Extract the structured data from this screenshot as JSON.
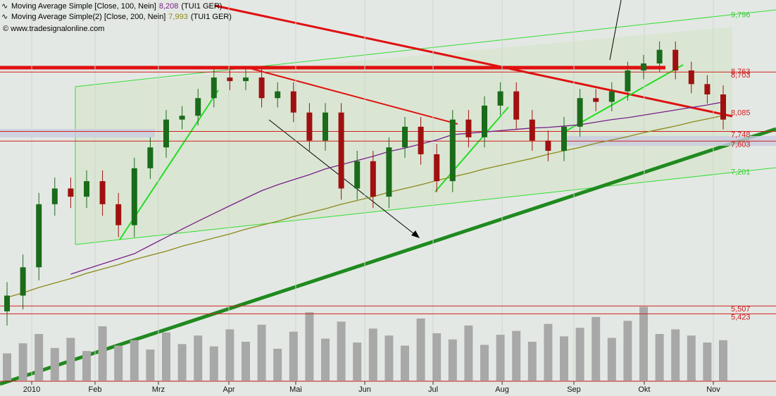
{
  "chart_data": {
    "type": "candlestick",
    "log_scale": true,
    "ylim": [
      4.76,
      10.02
    ],
    "categories": [
      null,
      null,
      null,
      null,
      null,
      null,
      null,
      null,
      null,
      null,
      null,
      null,
      null,
      null,
      null,
      null,
      null,
      null,
      null,
      null,
      null,
      null,
      null,
      null,
      null,
      null,
      null,
      null,
      null,
      null,
      null,
      null,
      null,
      null,
      null,
      null,
      null,
      null,
      null,
      null,
      null,
      null,
      null,
      null,
      null,
      null
    ],
    "xticks": [
      {
        "value": 1.55,
        "label": "2010"
      },
      {
        "value": 5.53,
        "label": "Feb"
      },
      {
        "value": 9.51,
        "label": "Mrz"
      },
      {
        "value": 13.94,
        "label": "Apr"
      },
      {
        "value": 18.14,
        "label": "Mai"
      },
      {
        "value": 22.48,
        "label": "Jun"
      },
      {
        "value": 26.77,
        "label": "Jul"
      },
      {
        "value": 31.11,
        "label": "Aug"
      },
      {
        "value": 35.62,
        "label": "Sep"
      },
      {
        "value": 40.04,
        "label": "Okt"
      },
      {
        "value": 44.38,
        "label": "Nov"
      }
    ],
    "up_color": "#1a6b1a",
    "down_color": "#a01010",
    "open": [
      5.45,
      5.62,
      5.94,
      6.72,
      6.93,
      6.82,
      7.03,
      6.72,
      6.45,
      7.21,
      7.51,
      7.93,
      7.99,
      8.27,
      8.61,
      8.55,
      8.61,
      8.27,
      8.38,
      8.04,
      7.61,
      8.04,
      6.93,
      7.31,
      6.82,
      7.51,
      7.82,
      7.41,
      7.03,
      7.93,
      7.66,
      8.15,
      8.38,
      7.93,
      7.61,
      7.46,
      7.82,
      8.27,
      8.21,
      8.38,
      8.73,
      8.85,
      9.09,
      8.73,
      8.5,
      8.33
    ],
    "high": [
      5.77,
      6.09,
      6.87,
      7.08,
      7.08,
      7.18,
      7.18,
      6.87,
      7.36,
      7.66,
      8.08,
      8.14,
      8.42,
      8.76,
      8.76,
      8.76,
      8.76,
      8.53,
      8.53,
      8.19,
      8.19,
      8.19,
      7.46,
      7.46,
      7.66,
      7.97,
      7.97,
      7.56,
      8.08,
      8.08,
      8.3,
      8.53,
      8.53,
      8.08,
      7.76,
      7.97,
      8.42,
      8.42,
      8.53,
      8.88,
      9.0,
      9.24,
      9.24,
      8.88,
      8.65,
      8.48
    ],
    "low": [
      5.3,
      5.47,
      5.79,
      6.57,
      6.67,
      6.67,
      6.57,
      6.3,
      6.3,
      7.06,
      7.36,
      7.78,
      7.84,
      8.12,
      8.4,
      8.4,
      8.12,
      8.12,
      7.89,
      7.46,
      7.46,
      6.78,
      6.78,
      6.67,
      6.67,
      7.36,
      7.26,
      6.88,
      6.88,
      7.51,
      7.51,
      8.0,
      7.78,
      7.46,
      7.31,
      7.31,
      7.67,
      8.06,
      8.06,
      8.23,
      8.58,
      8.7,
      8.58,
      8.35,
      8.18,
      7.78
    ],
    "close": [
      5.62,
      5.94,
      6.72,
      6.93,
      6.82,
      7.03,
      6.72,
      6.45,
      7.21,
      7.51,
      7.93,
      7.99,
      8.27,
      8.61,
      8.55,
      8.61,
      8.27,
      8.38,
      8.04,
      7.61,
      8.04,
      6.93,
      7.31,
      6.82,
      7.51,
      7.82,
      7.41,
      7.03,
      7.93,
      7.66,
      8.15,
      8.38,
      7.93,
      7.61,
      7.46,
      7.82,
      8.27,
      8.21,
      8.38,
      8.73,
      8.85,
      9.09,
      8.73,
      8.5,
      8.33,
      7.93
    ],
    "volume": [
      35,
      48,
      60,
      42,
      55,
      38,
      70,
      45,
      52,
      40,
      62,
      47,
      58,
      44,
      66,
      50,
      72,
      41,
      63,
      88,
      54,
      76,
      49,
      67,
      58,
      45,
      80,
      61,
      53,
      71,
      46,
      59,
      64,
      50,
      73,
      57,
      68,
      82,
      55,
      77,
      95,
      60,
      66,
      58,
      49,
      52
    ],
    "vlim": [
      0,
      100
    ],
    "volume_color": "#a8a8a8",
    "series": [
      {
        "name": "Moving Average Simple [Close, 100, Nein]",
        "color": "#7a1f8a",
        "last_label": "8,208",
        "source": "(TUI1 GER)",
        "values": [
          null,
          null,
          null,
          null,
          5.86,
          5.92,
          5.98,
          6.04,
          6.1,
          6.2,
          6.3,
          6.4,
          6.5,
          6.6,
          6.7,
          6.8,
          6.9,
          6.98,
          7.05,
          7.12,
          7.2,
          7.26,
          7.32,
          7.38,
          7.45,
          7.5,
          7.56,
          7.62,
          7.7,
          7.72,
          7.74,
          7.76,
          7.78,
          7.8,
          7.81,
          7.83,
          7.85,
          7.89,
          7.93,
          7.96,
          8.0,
          8.04,
          8.08,
          8.12,
          8.16,
          8.208
        ]
      },
      {
        "name": "Moving Average Simple(2) [Close, 200, Nein]",
        "color": "#8a8a1a",
        "last_label": "7,993",
        "source": "(TUI1 GER)",
        "values": [
          5.6,
          5.65,
          5.71,
          5.76,
          5.81,
          5.87,
          5.92,
          5.97,
          6.03,
          6.08,
          6.13,
          6.19,
          6.24,
          6.29,
          6.34,
          6.4,
          6.45,
          6.5,
          6.56,
          6.61,
          6.66,
          6.72,
          6.77,
          6.82,
          6.88,
          6.93,
          6.98,
          7.04,
          7.09,
          7.14,
          7.2,
          7.25,
          7.3,
          7.35,
          7.41,
          7.46,
          7.51,
          7.57,
          7.62,
          7.67,
          7.73,
          7.78,
          7.83,
          7.89,
          7.94,
          7.993
        ]
      }
    ],
    "price_levels": [
      {
        "value": 9.796,
        "label": "9,796",
        "color": "#33cc33",
        "line": false
      },
      {
        "value": 8.763,
        "label": "8,763",
        "color": "#d02020",
        "line": false
      },
      {
        "value": 8.703,
        "label": "8,703",
        "color": "#d02020",
        "line": true
      },
      {
        "value": 8.085,
        "label": "8,085",
        "color": "#d02020",
        "line": false
      },
      {
        "value": 7.748,
        "label": "7,748",
        "color": "#d02020",
        "line": true
      },
      {
        "value": 7.603,
        "label": "7,603",
        "color": "#d02020",
        "line": true
      },
      {
        "value": 7.201,
        "label": "7,201",
        "color": "#33cc33",
        "line": false
      },
      {
        "value": 5.507,
        "label": "5,507",
        "color": "#d02020",
        "line": true
      },
      {
        "value": 5.423,
        "label": "5,423",
        "color": "#d02020",
        "line": true
      }
    ],
    "copyright": "© www.tradesignalonline.com"
  }
}
